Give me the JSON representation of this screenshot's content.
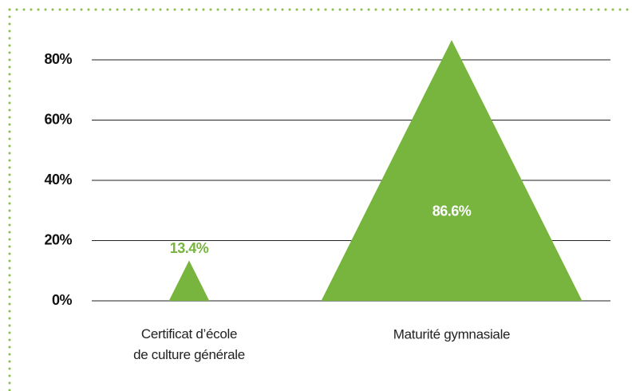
{
  "chart_data": {
    "type": "triangle",
    "categories": [
      "Certificat d’école\nde culture générale",
      "Maturité gymnasiale"
    ],
    "values": [
      13.4,
      86.6
    ],
    "value_labels": [
      "13.4%",
      "86.6%"
    ],
    "color": "#78b53f",
    "ylim": [
      0,
      80
    ],
    "yticks": [
      {
        "value": 0,
        "label": "0%"
      },
      {
        "value": 20,
        "label": "20%"
      },
      {
        "value": 40,
        "label": "40%"
      },
      {
        "value": 60,
        "label": "60%"
      },
      {
        "value": 80,
        "label": "80%"
      }
    ],
    "grid": true
  }
}
